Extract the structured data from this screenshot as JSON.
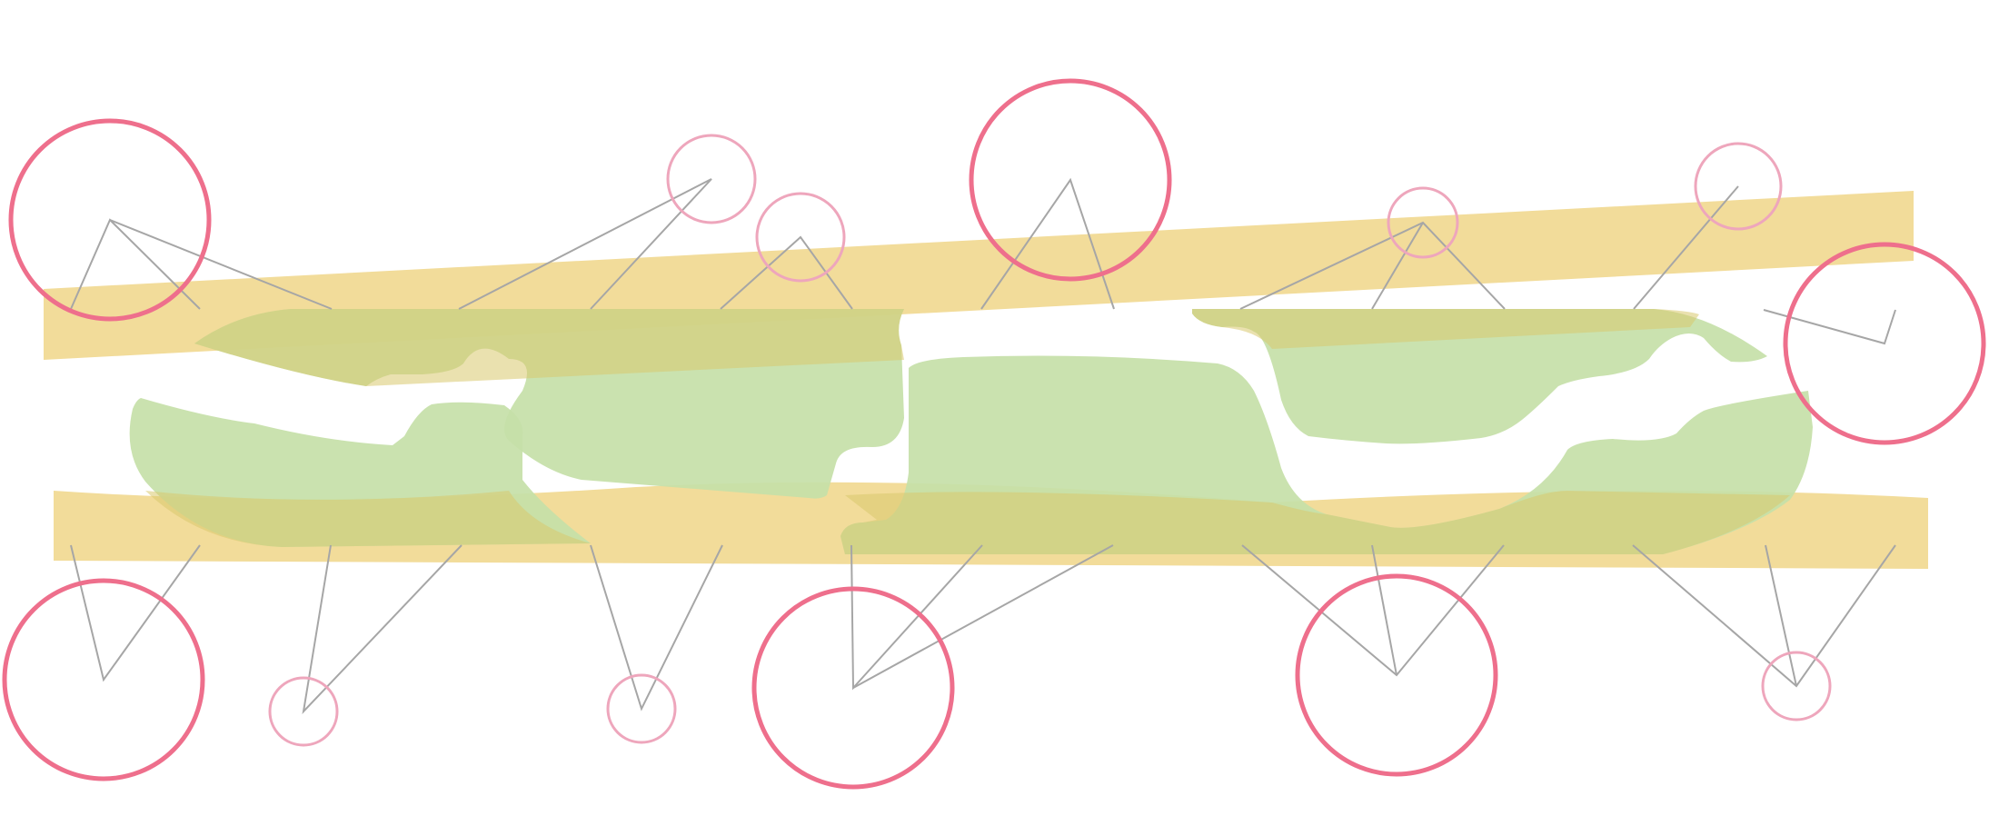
{
  "diagram": {
    "text_labels": [],
    "colors": {
      "band": "#f2dc9a",
      "overlay": "#c5e0a8",
      "overlap": "#d8c96e",
      "node_major": "#ee6f8c",
      "node_minor": "#eea6bc",
      "connector": "#a6a6a6"
    },
    "bands": [
      {
        "name": "upper-band"
      },
      {
        "name": "lower-band"
      }
    ],
    "nodes": [
      {
        "name": "node-top-1",
        "kind": "major"
      },
      {
        "name": "node-top-2",
        "kind": "minor"
      },
      {
        "name": "node-top-3",
        "kind": "minor"
      },
      {
        "name": "node-top-4",
        "kind": "major"
      },
      {
        "name": "node-top-5",
        "kind": "minor"
      },
      {
        "name": "node-top-6",
        "kind": "minor"
      },
      {
        "name": "node-right",
        "kind": "major"
      },
      {
        "name": "node-bottom-1",
        "kind": "major"
      },
      {
        "name": "node-bottom-2",
        "kind": "minor"
      },
      {
        "name": "node-bottom-3",
        "kind": "minor"
      },
      {
        "name": "node-bottom-4",
        "kind": "major"
      },
      {
        "name": "node-bottom-5",
        "kind": "major"
      },
      {
        "name": "node-bottom-6",
        "kind": "minor"
      }
    ]
  }
}
